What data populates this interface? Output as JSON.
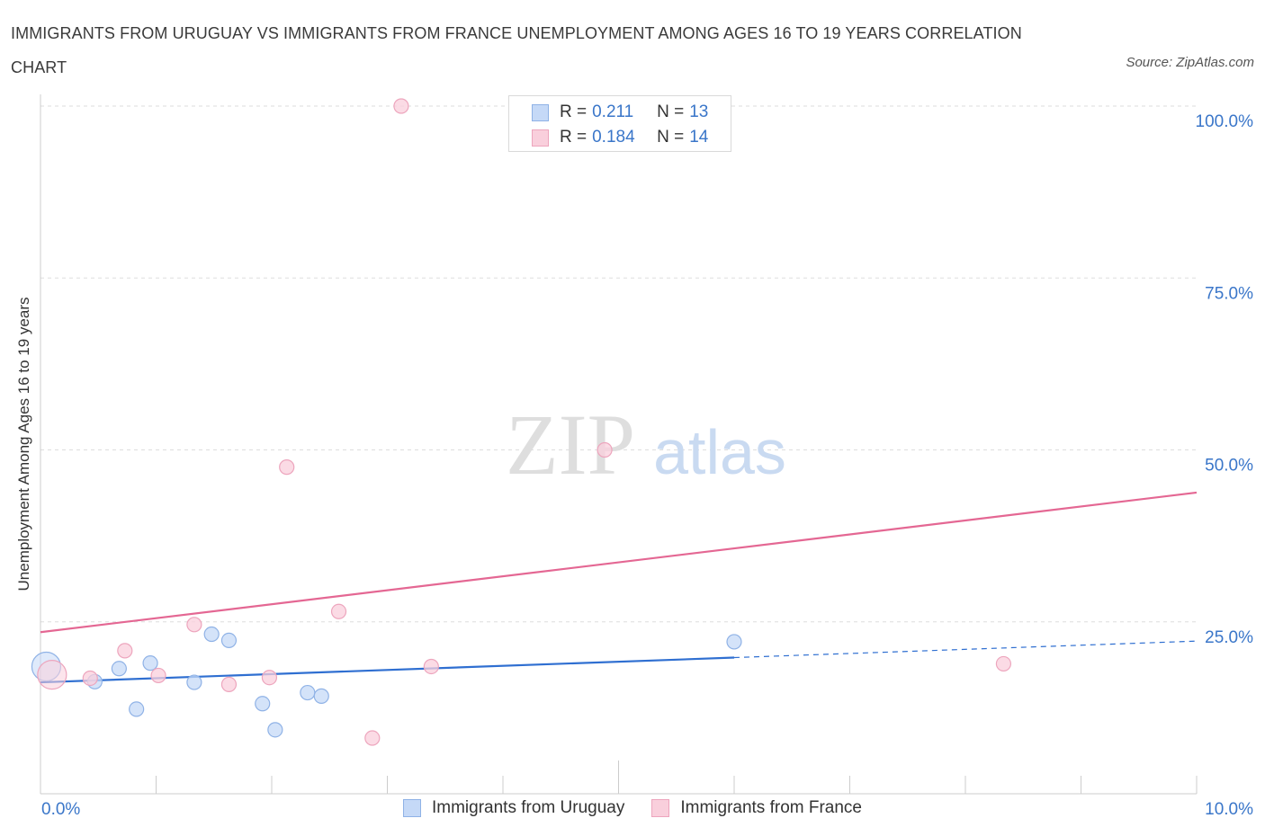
{
  "title": "IMMIGRANTS FROM URUGUAY VS IMMIGRANTS FROM FRANCE UNEMPLOYMENT AMONG AGES 16 TO 19 YEARS CORRELATION CHART",
  "source": "Source: ZipAtlas.com",
  "watermark": {
    "zip": "ZIP",
    "atlas": "atlas"
  },
  "legend_top": {
    "rows": [
      {
        "r_label": "R =",
        "r_value": "0.211",
        "n_label": "N =",
        "n_value": "13"
      },
      {
        "r_label": "R =",
        "r_value": "0.184",
        "n_label": "N =",
        "n_value": "14"
      }
    ]
  },
  "colors": {
    "uruguay_fill": "#c5d9f7",
    "uruguay_stroke": "#8fb2e6",
    "uruguay_line": "#2f6fd1",
    "france_fill": "#f9cfdc",
    "france_stroke": "#eda5bd",
    "france_line": "#e46793",
    "grid": "#dddddd",
    "axis_text": "#3a76c9"
  },
  "chart_data": {
    "type": "scatter",
    "title": "IMMIGRANTS FROM URUGUAY VS IMMIGRANTS FROM FRANCE UNEMPLOYMENT AMONG AGES 16 TO 19 YEARS CORRELATION CHART",
    "xlabel": "",
    "ylabel": "Unemployment Among Ages 16 to 19 years",
    "xlim": [
      0,
      10
    ],
    "ylim": [
      0,
      100
    ],
    "x_tick_labels": [
      "0.0%",
      "10.0%"
    ],
    "y_ticks": [
      25,
      50,
      75,
      100
    ],
    "y_tick_labels": [
      "25.0%",
      "50.0%",
      "75.0%",
      "100.0%"
    ],
    "grid": true,
    "series": [
      {
        "name": "Immigrants from Uruguay",
        "points": [
          {
            "x": 0.05,
            "y": 18.5,
            "big": true
          },
          {
            "x": 0.47,
            "y": 16.3
          },
          {
            "x": 0.68,
            "y": 18.2
          },
          {
            "x": 0.95,
            "y": 19.0
          },
          {
            "x": 1.33,
            "y": 16.2
          },
          {
            "x": 1.48,
            "y": 23.2
          },
          {
            "x": 1.63,
            "y": 22.3
          },
          {
            "x": 0.83,
            "y": 12.3
          },
          {
            "x": 1.92,
            "y": 13.1
          },
          {
            "x": 2.03,
            "y": 9.3
          },
          {
            "x": 2.31,
            "y": 14.7
          },
          {
            "x": 2.43,
            "y": 14.2
          },
          {
            "x": 6.0,
            "y": 22.1
          }
        ],
        "trend": {
          "x0": 0.0,
          "y0": 16.2,
          "x1": 6.0,
          "y1": 19.8,
          "dash_x1": 10.0,
          "dash_y1": 22.2
        }
      },
      {
        "name": "Immigrants from France",
        "points": [
          {
            "x": 0.1,
            "y": 17.3,
            "big": true
          },
          {
            "x": 0.43,
            "y": 16.8
          },
          {
            "x": 0.73,
            "y": 20.8
          },
          {
            "x": 1.02,
            "y": 17.2
          },
          {
            "x": 1.33,
            "y": 24.6
          },
          {
            "x": 1.63,
            "y": 15.9
          },
          {
            "x": 1.98,
            "y": 16.9
          },
          {
            "x": 2.13,
            "y": 47.5
          },
          {
            "x": 2.58,
            "y": 26.5
          },
          {
            "x": 3.12,
            "y": 100.0
          },
          {
            "x": 2.87,
            "y": 8.1
          },
          {
            "x": 3.38,
            "y": 18.5
          },
          {
            "x": 4.88,
            "y": 50.0
          },
          {
            "x": 8.33,
            "y": 18.9
          }
        ],
        "trend": {
          "x0": 0.0,
          "y0": 23.5,
          "x1": 10.0,
          "y1": 43.8
        }
      }
    ]
  },
  "legend_bottom": [
    "Immigrants from Uruguay",
    "Immigrants from France"
  ]
}
